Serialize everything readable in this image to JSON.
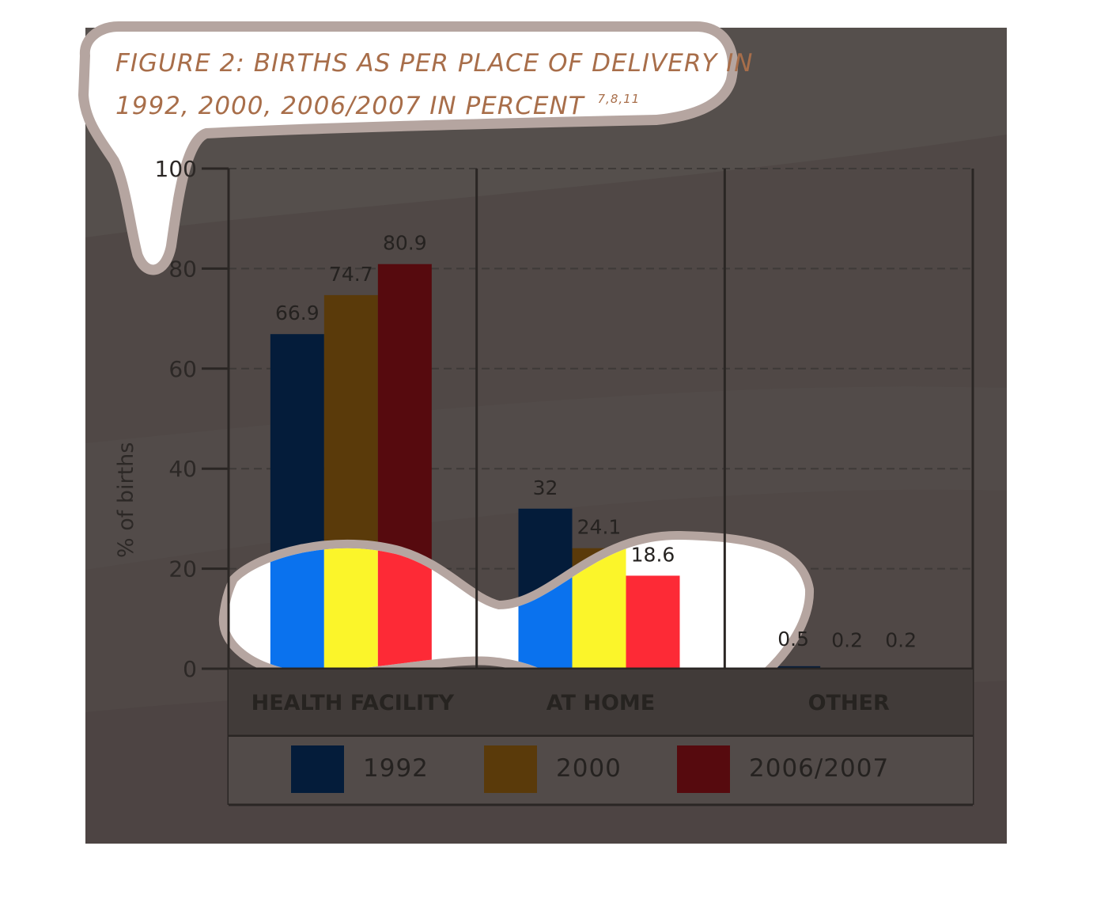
{
  "chart_data": {
    "type": "bar",
    "title_line1": "FIGURE 2: BIRTHS AS PER PLACE OF DELIVERY IN",
    "title_line2": "1992, 2000, 2006/2007 IN PERCENT",
    "title_refs": "7,8,11",
    "ylabel": "% of births",
    "xlabel": "",
    "ylim": [
      0,
      100
    ],
    "yticks": [
      "0",
      "20",
      "40",
      "60",
      "80",
      "100"
    ],
    "grid": true,
    "legend_position": "bottom",
    "categories": [
      "HEALTH FACILITY",
      "AT HOME",
      "OTHER"
    ],
    "series": [
      {
        "name": "1992",
        "values": [
          66.9,
          32,
          0.5
        ],
        "labels": [
          "66.9",
          "32",
          "0.5"
        ]
      },
      {
        "name": "2000",
        "values": [
          74.7,
          24.1,
          0.2
        ],
        "labels": [
          "74.7",
          "24.1",
          "0.2"
        ]
      },
      {
        "name": "2006/2007",
        "values": [
          80.9,
          18.6,
          0.2
        ],
        "labels": [
          "80.9",
          "18.6",
          "0.2"
        ]
      }
    ]
  },
  "colors": {
    "series_top": [
      "#041c3a",
      "#5a3a0a",
      "#560a0e"
    ],
    "series_bottom": [
      "#0a72ee",
      "#fbf52a",
      "#fd2a36"
    ],
    "title": "#a86e4a",
    "title_dark": "#3a2a20",
    "panel": "#504846"
  }
}
